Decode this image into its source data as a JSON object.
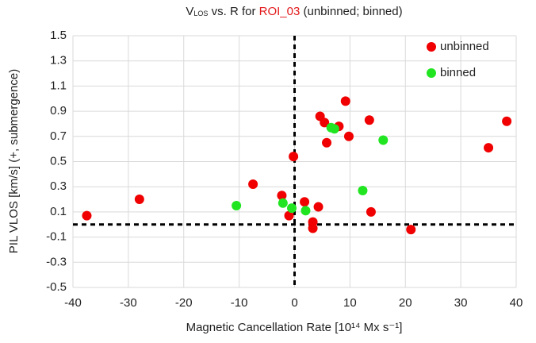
{
  "chart_data": {
    "type": "scatter",
    "title_parts": [
      "V",
      "LOS",
      " vs. R for ",
      "ROI_03",
      " (unbinned; binned)"
    ],
    "title_colors": [
      "#222",
      "#222",
      "#222",
      "#e31a1c",
      "#222"
    ],
    "xlabel": "Magnetic Cancellation Rate [10¹⁴ Mx s⁻¹]",
    "ylabel": "PIL VLOS [km/s] (+, submergence)",
    "xlim": [
      -40,
      40
    ],
    "ylim": [
      -0.5,
      1.5
    ],
    "xticks": [
      -40,
      -30,
      -20,
      -10,
      0,
      10,
      20,
      30,
      40
    ],
    "yticks": [
      -0.5,
      -0.3,
      -0.1,
      0.1,
      0.3,
      0.5,
      0.7,
      0.9,
      1.1,
      1.3,
      1.5
    ],
    "grid": true,
    "hlines": [
      0
    ],
    "vlines": [
      0
    ],
    "legend": "upper right",
    "series": [
      {
        "name": "unbinned",
        "color": "#f00000",
        "x": [
          -37.5,
          -28,
          -7.5,
          -2.3,
          -1,
          -0.2,
          1.8,
          3.3,
          3.3,
          4.3,
          4.6,
          5.4,
          5.8,
          8,
          9.2,
          9.8,
          13.5,
          13.8,
          21,
          35,
          38.3
        ],
        "values": [
          0.07,
          0.2,
          0.32,
          0.23,
          0.07,
          0.54,
          0.18,
          0.02,
          -0.03,
          0.14,
          0.86,
          0.81,
          0.65,
          0.78,
          0.98,
          0.7,
          0.83,
          0.1,
          -0.04,
          0.61,
          0.82
        ]
      },
      {
        "name": "binned",
        "color": "#22e522",
        "x": [
          -10.5,
          -2.1,
          -0.5,
          2,
          6.6,
          7.2,
          12.3,
          16
        ],
        "values": [
          0.15,
          0.17,
          0.13,
          0.11,
          0.77,
          0.76,
          0.27,
          0.67
        ]
      }
    ]
  }
}
